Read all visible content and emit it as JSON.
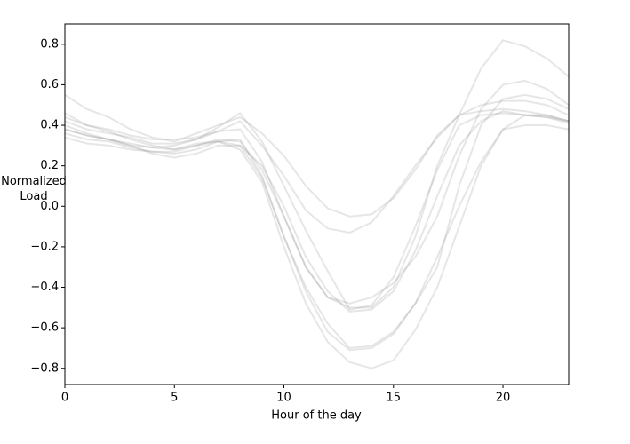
{
  "chart_data": {
    "type": "line",
    "xlabel": "Hour of the day",
    "ylabel": "Normalized Load",
    "x": [
      0,
      1,
      2,
      3,
      4,
      5,
      6,
      7,
      8,
      9,
      10,
      11,
      12,
      13,
      14,
      15,
      16,
      17,
      18,
      19,
      20,
      21,
      22,
      23
    ],
    "xlim": [
      0,
      23
    ],
    "xticks": [
      0,
      5,
      10,
      15,
      20
    ],
    "ylim": [
      -0.88,
      0.9
    ],
    "yticks": [
      {
        "value": -0.8,
        "label": "−0.8"
      },
      {
        "value": -0.6,
        "label": "−0.6"
      },
      {
        "value": -0.4,
        "label": "−0.4"
      },
      {
        "value": -0.2,
        "label": "−0.2"
      },
      {
        "value": 0,
        "label": "0.0"
      },
      0.2,
      0.4,
      0.6,
      0.8
    ],
    "alpha": 0.2,
    "series": [
      {
        "color": "#808080",
        "values": [
          0.55,
          0.48,
          0.44,
          0.38,
          0.34,
          0.32,
          0.36,
          0.4,
          0.44,
          0.36,
          0.25,
          0.1,
          -0.01,
          -0.05,
          -0.04,
          0.04,
          0.18,
          0.35,
          0.45,
          0.5,
          0.52,
          0.52,
          0.5,
          0.45
        ]
      },
      {
        "color": "#808080",
        "values": [
          0.4,
          0.36,
          0.33,
          0.3,
          0.26,
          0.24,
          0.26,
          0.3,
          0.3,
          0.2,
          0.0,
          -0.25,
          -0.42,
          -0.52,
          -0.51,
          -0.42,
          -0.22,
          0.05,
          0.3,
          0.42,
          0.47,
          0.45,
          0.44,
          0.42
        ]
      },
      {
        "color": "#808080",
        "values": [
          0.46,
          0.4,
          0.37,
          0.33,
          0.3,
          0.28,
          0.3,
          0.33,
          0.32,
          0.18,
          -0.05,
          -0.3,
          -0.45,
          -0.5,
          -0.5,
          -0.4,
          -0.15,
          0.2,
          0.45,
          0.68,
          0.82,
          0.79,
          0.73,
          0.64
        ]
      },
      {
        "color": "#808080",
        "values": [
          0.38,
          0.35,
          0.33,
          0.3,
          0.29,
          0.28,
          0.31,
          0.32,
          0.28,
          0.12,
          -0.2,
          -0.48,
          -0.67,
          -0.77,
          -0.8,
          -0.76,
          -0.61,
          -0.4,
          -0.1,
          0.2,
          0.38,
          0.4,
          0.4,
          0.38
        ]
      },
      {
        "color": "#808080",
        "values": [
          0.36,
          0.33,
          0.32,
          0.29,
          0.27,
          0.27,
          0.3,
          0.32,
          0.3,
          0.14,
          -0.15,
          -0.42,
          -0.62,
          -0.71,
          -0.7,
          -0.63,
          -0.48,
          -0.25,
          0.0,
          0.22,
          0.38,
          0.45,
          0.45,
          0.42
        ]
      },
      {
        "color": "#808080",
        "values": [
          0.44,
          0.4,
          0.38,
          0.35,
          0.33,
          0.33,
          0.34,
          0.37,
          0.42,
          0.3,
          0.15,
          -0.02,
          -0.11,
          -0.13,
          -0.08,
          0.05,
          0.2,
          0.34,
          0.45,
          0.47,
          0.48,
          0.47,
          0.45,
          0.42
        ]
      },
      {
        "color": "#808080",
        "values": [
          0.38,
          0.35,
          0.33,
          0.31,
          0.29,
          0.3,
          0.33,
          0.37,
          0.38,
          0.22,
          -0.05,
          -0.3,
          -0.45,
          -0.48,
          -0.45,
          -0.38,
          -0.25,
          -0.05,
          0.25,
          0.48,
          0.6,
          0.62,
          0.58,
          0.5
        ]
      },
      {
        "color": "#808080",
        "values": [
          0.34,
          0.31,
          0.3,
          0.28,
          0.27,
          0.26,
          0.28,
          0.32,
          0.33,
          0.15,
          -0.15,
          -0.4,
          -0.58,
          -0.7,
          -0.69,
          -0.62,
          -0.48,
          -0.3,
          0.1,
          0.4,
          0.53,
          0.55,
          0.53,
          0.48
        ]
      },
      {
        "color": "#808080",
        "values": [
          0.42,
          0.38,
          0.36,
          0.34,
          0.31,
          0.31,
          0.33,
          0.39,
          0.46,
          0.32,
          0.1,
          -0.12,
          -0.32,
          -0.51,
          -0.49,
          -0.35,
          -0.1,
          0.18,
          0.4,
          0.45,
          0.46,
          0.45,
          0.44,
          0.41
        ]
      }
    ]
  }
}
